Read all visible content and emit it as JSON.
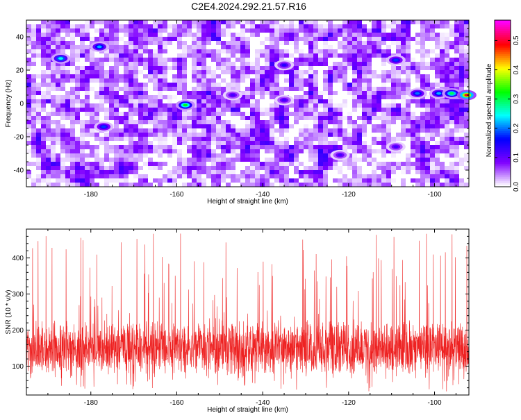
{
  "title": "C2E4.2024.292.21.57.R16",
  "chart_data": [
    {
      "type": "heatmap",
      "xlabel": "Height of straight line (km)",
      "ylabel": "Frequency (Hz)",
      "xlim": [
        -195,
        -92
      ],
      "ylim": [
        -50,
        50
      ],
      "xticks": [
        -180,
        -160,
        -140,
        -120,
        -100
      ],
      "yticks": [
        -40,
        -20,
        0,
        20,
        40
      ],
      "colorbar": {
        "label": "Normalized spectral amplitude",
        "range": [
          0,
          0.57
        ],
        "ticks": [
          0.0,
          0.1,
          0.2,
          0.3,
          0.4,
          0.5
        ],
        "colors": [
          "#ffffff",
          "#8000ff",
          "#0000ff",
          "#00ffff",
          "#00ff00",
          "#ffff00",
          "#ff0000",
          "#ff00ff"
        ]
      },
      "hotspots": [
        {
          "x": -187,
          "y": 27,
          "value": 0.25
        },
        {
          "x": -178,
          "y": 34,
          "value": 0.22
        },
        {
          "x": -177,
          "y": -14,
          "value": 0.18
        },
        {
          "x": -158,
          "y": -1,
          "value": 0.32
        },
        {
          "x": -147,
          "y": 5,
          "value": 0.12
        },
        {
          "x": -135,
          "y": 23,
          "value": 0.14
        },
        {
          "x": -135,
          "y": 2,
          "value": 0.12
        },
        {
          "x": -122,
          "y": -31,
          "value": 0.12
        },
        {
          "x": -109,
          "y": 26,
          "value": 0.18
        },
        {
          "x": -109,
          "y": -26,
          "value": 0.12
        },
        {
          "x": -104,
          "y": 6,
          "value": 0.2
        },
        {
          "x": -99,
          "y": 6,
          "value": 0.22
        },
        {
          "x": -96,
          "y": 6,
          "value": 0.3
        },
        {
          "x": -92.5,
          "y": 5,
          "value": 0.5
        }
      ]
    },
    {
      "type": "line",
      "xlabel": "Height of straight line (km)",
      "ylabel": "SNR (10 * v/v)",
      "xlim": [
        -195,
        -92
      ],
      "ylim": [
        20,
        480
      ],
      "xticks": [
        -180,
        -160,
        -140,
        -120,
        -100
      ],
      "yticks": [
        100,
        200,
        300,
        400
      ],
      "series": [
        {
          "color": "#ee2222",
          "baseline": 150,
          "noise_amplitude": 60,
          "peak_max": 470,
          "x_step_km": 0.04
        }
      ]
    }
  ]
}
